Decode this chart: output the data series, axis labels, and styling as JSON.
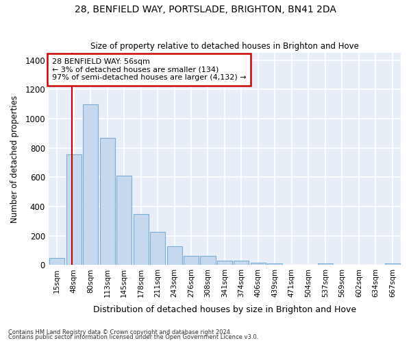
{
  "title1": "28, BENFIELD WAY, PORTSLADE, BRIGHTON, BN41 2DA",
  "title2": "Size of property relative to detached houses in Brighton and Hove",
  "xlabel": "Distribution of detached houses by size in Brighton and Hove",
  "ylabel": "Number of detached properties",
  "footnote1": "Contains HM Land Registry data © Crown copyright and database right 2024.",
  "footnote2": "Contains public sector information licensed under the Open Government Licence v3.0.",
  "categories": [
    "15sqm",
    "48sqm",
    "80sqm",
    "113sqm",
    "145sqm",
    "178sqm",
    "211sqm",
    "243sqm",
    "276sqm",
    "308sqm",
    "341sqm",
    "374sqm",
    "406sqm",
    "439sqm",
    "471sqm",
    "504sqm",
    "537sqm",
    "569sqm",
    "602sqm",
    "634sqm",
    "667sqm"
  ],
  "values": [
    50,
    755,
    1100,
    868,
    612,
    348,
    225,
    130,
    62,
    65,
    28,
    28,
    18,
    12,
    0,
    0,
    12,
    0,
    0,
    0,
    12
  ],
  "bar_color": "#c5d8ee",
  "bar_edge_color": "#7aadd4",
  "bg_color": "#e8eef8",
  "grid_color": "#ffffff",
  "vline_x_idx": 1,
  "vline_color": "#cc0000",
  "annotation_text": "28 BENFIELD WAY: 56sqm\n← 3% of detached houses are smaller (134)\n97% of semi-detached houses are larger (4,132) →",
  "annotation_box_color": "#ffffff",
  "annotation_box_edge": "#cc0000",
  "ylim": [
    0,
    1450
  ],
  "yticks": [
    0,
    200,
    400,
    600,
    800,
    1000,
    1200,
    1400
  ],
  "fig_bg": "#ffffff"
}
